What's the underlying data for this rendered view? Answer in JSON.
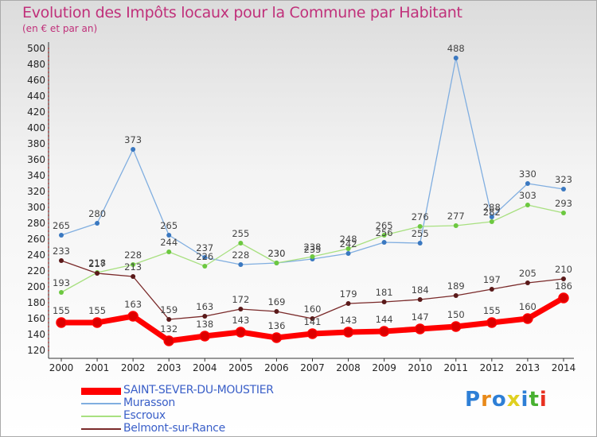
{
  "header": {
    "title": "Evolution des Impôts locaux pour la Commune par Habitant",
    "subtitle": "(en € et par an)"
  },
  "logo": {
    "text": "Proxiti",
    "colors": [
      "#2e7fd6",
      "#e88a1a",
      "#2e7fd6",
      "#e0d020",
      "#2e7fd6",
      "#48b030",
      "#e83020"
    ]
  },
  "chart_data": {
    "type": "line",
    "title": "Evolution des Impôts locaux pour la Commune par Habitant",
    "subtitle": "(en € et par an)",
    "x": [
      "2000",
      "2001",
      "2002",
      "2003",
      "2004",
      "2005",
      "2006",
      "2007",
      "2008",
      "2009",
      "2010",
      "2011",
      "2012",
      "2013",
      "2014"
    ],
    "ylim": [
      120,
      500
    ],
    "yticks": [
      120,
      140,
      160,
      180,
      200,
      220,
      240,
      260,
      280,
      300,
      320,
      340,
      360,
      380,
      400,
      420,
      440,
      460,
      480,
      500
    ],
    "grid": false,
    "legend_position": "bottom-left",
    "series": [
      {
        "name": "SAINT-SEVER-DU-MOUSTIER",
        "color": "#ff0000",
        "marker": "#dd0000",
        "values": [
          155,
          155,
          163,
          132,
          138,
          143,
          136,
          141,
          143,
          144,
          147,
          150,
          155,
          160,
          186
        ]
      },
      {
        "name": "Murasson",
        "color": "#80aee0",
        "marker": "#3a78c0",
        "values": [
          265,
          280,
          373,
          265,
          237,
          228,
          230,
          235,
          242,
          256,
          255,
          488,
          288,
          330,
          323
        ]
      },
      {
        "name": "Escroux",
        "color": "#a8e080",
        "marker": "#6cc840",
        "values": [
          193,
          218,
          228,
          244,
          226,
          255,
          230,
          238,
          248,
          265,
          276,
          277,
          282,
          303,
          293
        ]
      },
      {
        "name": "Belmont-sur-Rance",
        "color": "#7a2a2a",
        "marker": "#5a1a1a",
        "values": [
          233,
          217,
          213,
          159,
          163,
          172,
          169,
          160,
          179,
          181,
          184,
          189,
          197,
          205,
          210
        ]
      }
    ]
  }
}
